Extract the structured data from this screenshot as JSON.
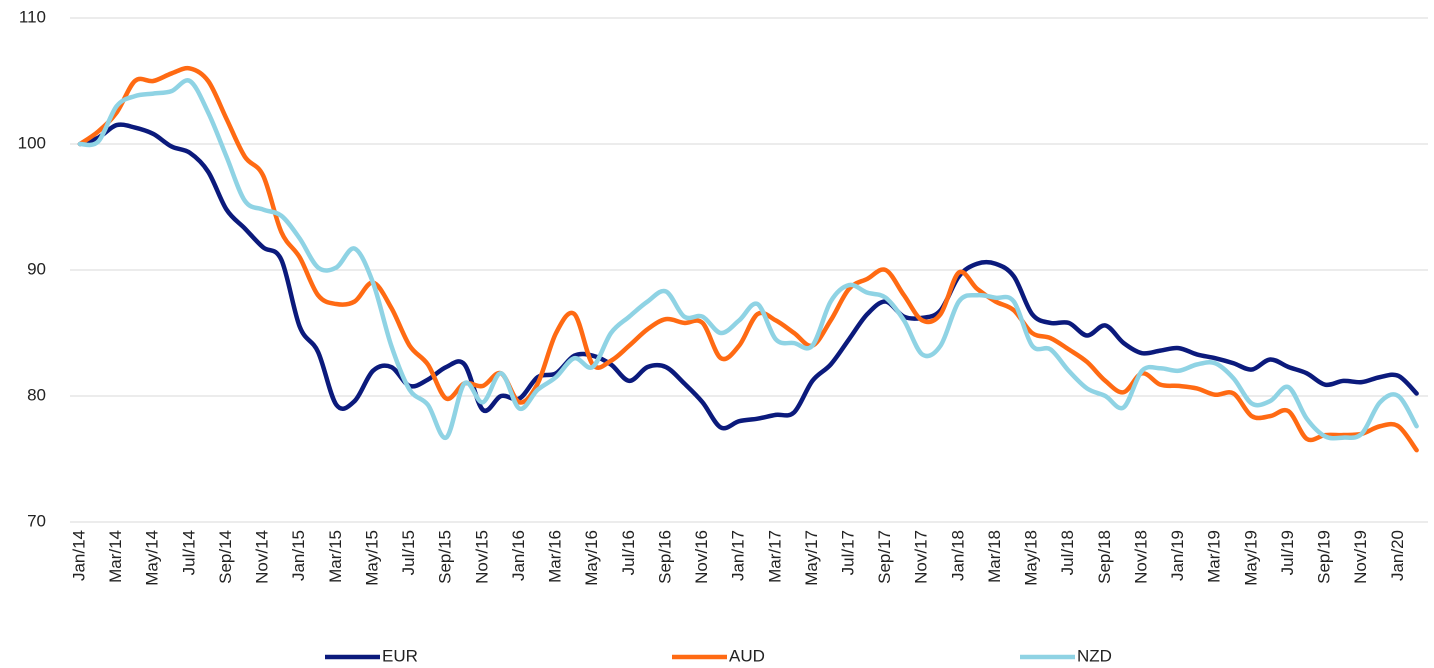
{
  "chart_data": {
    "type": "line",
    "categories": [
      "Jan/14",
      null,
      "Mar/14",
      null,
      "May/14",
      null,
      "Jul/14",
      null,
      "Sep/14",
      null,
      "Nov/14",
      null,
      "Jan/15",
      null,
      "Mar/15",
      null,
      "May/15",
      null,
      "Jul/15",
      null,
      "Sep/15",
      null,
      "Nov/15",
      null,
      "Jan/16",
      null,
      "Mar/16",
      null,
      "May/16",
      null,
      "Jul/16",
      null,
      "Sep/16",
      null,
      "Nov/16",
      null,
      "Jan/17",
      null,
      "Mar/17",
      null,
      "May/17",
      null,
      "Jul/17",
      null,
      "Sep/17",
      null,
      "Nov/17",
      null,
      "Jan/18",
      null,
      "Mar/18",
      null,
      "May/18",
      null,
      "Jul/18",
      null,
      "Sep/18",
      null,
      "Nov/18",
      null,
      "Jan/19",
      null,
      "Mar/19",
      null,
      "May/19",
      null,
      "Jul/19",
      null,
      "Sep/19",
      null,
      "Nov/19",
      null,
      "Jan/20",
      null
    ],
    "series": [
      {
        "name": "EUR",
        "color": "#0b1a7c",
        "values": [
          100,
          100.5,
          101.5,
          101.3,
          100.8,
          99.8,
          99.3,
          97.8,
          94.8,
          93.3,
          91.8,
          90.8,
          85.5,
          83.5,
          79.3,
          79.6,
          82,
          82.3,
          80.8,
          81.3,
          82.3,
          82.5,
          78.9,
          80,
          79.8,
          81.5,
          81.8,
          83.2,
          83.2,
          82.5,
          81.2,
          82.3,
          82.3,
          81,
          79.5,
          77.5,
          78,
          78.2,
          78.5,
          78.7,
          81.2,
          82.5,
          84.5,
          86.5,
          87.5,
          86.3,
          86.2,
          86.8,
          89.5,
          90.5,
          90.5,
          89.5,
          86.5,
          85.8,
          85.8,
          84.8,
          85.6,
          84.2,
          83.4,
          83.6,
          83.8,
          83.3,
          83,
          82.6,
          82.1,
          82.9,
          82.3,
          81.8,
          80.9,
          81.2,
          81.1,
          81.5,
          81.6,
          80.2
        ]
      },
      {
        "name": "AUD",
        "color": "#ff6a13",
        "values": [
          100,
          101,
          102.5,
          105,
          105,
          105.6,
          106,
          105,
          102,
          99,
          97.5,
          93,
          91,
          88,
          87.3,
          87.5,
          89,
          87,
          84,
          82.5,
          79.8,
          81,
          80.8,
          81.8,
          79.5,
          81,
          85,
          86.5,
          82.5,
          82.8,
          84,
          85.3,
          86.1,
          85.8,
          85.8,
          83,
          84,
          86.5,
          86,
          85,
          84,
          86,
          88.5,
          89.3,
          90,
          88,
          86,
          86.5,
          89.8,
          88.5,
          87.5,
          86.8,
          85,
          84.6,
          83.7,
          82.7,
          81.2,
          80.3,
          81.8,
          80.9,
          80.8,
          80.6,
          80.1,
          80.2,
          78.4,
          78.4,
          78.8,
          76.6,
          76.9,
          76.9,
          77,
          77.6,
          77.6,
          75.7
        ]
      },
      {
        "name": "NZD",
        "color": "#8fd3e4",
        "values": [
          100,
          100.2,
          103,
          103.8,
          104,
          104.2,
          105,
          102.5,
          99,
          95.5,
          94.8,
          94.3,
          92.5,
          90.2,
          90.2,
          91.7,
          89,
          84,
          80.5,
          79.3,
          76.7,
          81,
          79.5,
          81.8,
          79,
          80.5,
          81.5,
          83,
          82.3,
          85,
          86.3,
          87.5,
          88.3,
          86.3,
          86.3,
          85,
          86,
          87.3,
          84.5,
          84.2,
          84,
          87.5,
          88.8,
          88.2,
          87.8,
          86,
          83.3,
          84,
          87.5,
          88,
          87.8,
          87.5,
          84,
          83.7,
          82,
          80.6,
          80,
          79.1,
          82,
          82.2,
          82,
          82.5,
          82.6,
          81.4,
          79.4,
          79.6,
          80.7,
          78.2,
          76.8,
          76.7,
          77,
          79.5,
          80,
          77.6
        ]
      }
    ],
    "ylim": [
      70,
      110
    ],
    "yticks": [
      70,
      80,
      90,
      100,
      110
    ],
    "grid": true,
    "legend": "bottom"
  }
}
